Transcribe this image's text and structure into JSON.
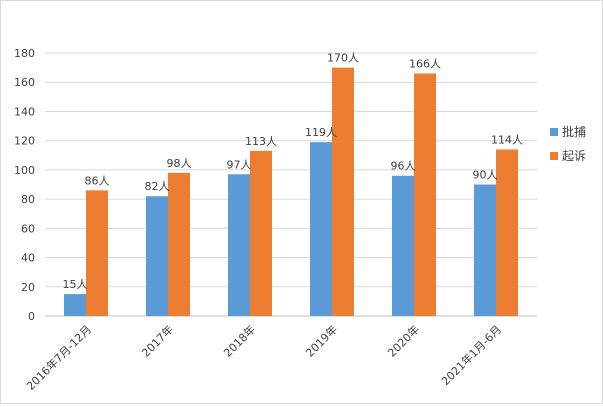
{
  "chart_data": {
    "type": "bar",
    "categories": [
      "2016年7月-12月",
      "2017年",
      "2018年",
      "2019年",
      "2020年",
      "2021年1月-6月"
    ],
    "series": [
      {
        "name": "批捕",
        "color": "#5b9bd5",
        "values": [
          15,
          82,
          97,
          119,
          96,
          90
        ],
        "labels": [
          "15人",
          "82人",
          "97人",
          "119人",
          "96人",
          "90人"
        ]
      },
      {
        "name": "起诉",
        "color": "#ed7d31",
        "values": [
          86,
          98,
          113,
          170,
          166,
          114
        ],
        "labels": [
          "86人",
          "98人",
          "113人",
          "170人",
          "166人",
          "114人"
        ]
      }
    ],
    "yticks": [
      "0",
      "20",
      "40",
      "60",
      "80",
      "100",
      "120",
      "140",
      "160",
      "180"
    ],
    "ylim": [
      0,
      180
    ],
    "grid": true,
    "legend_position": "right"
  }
}
